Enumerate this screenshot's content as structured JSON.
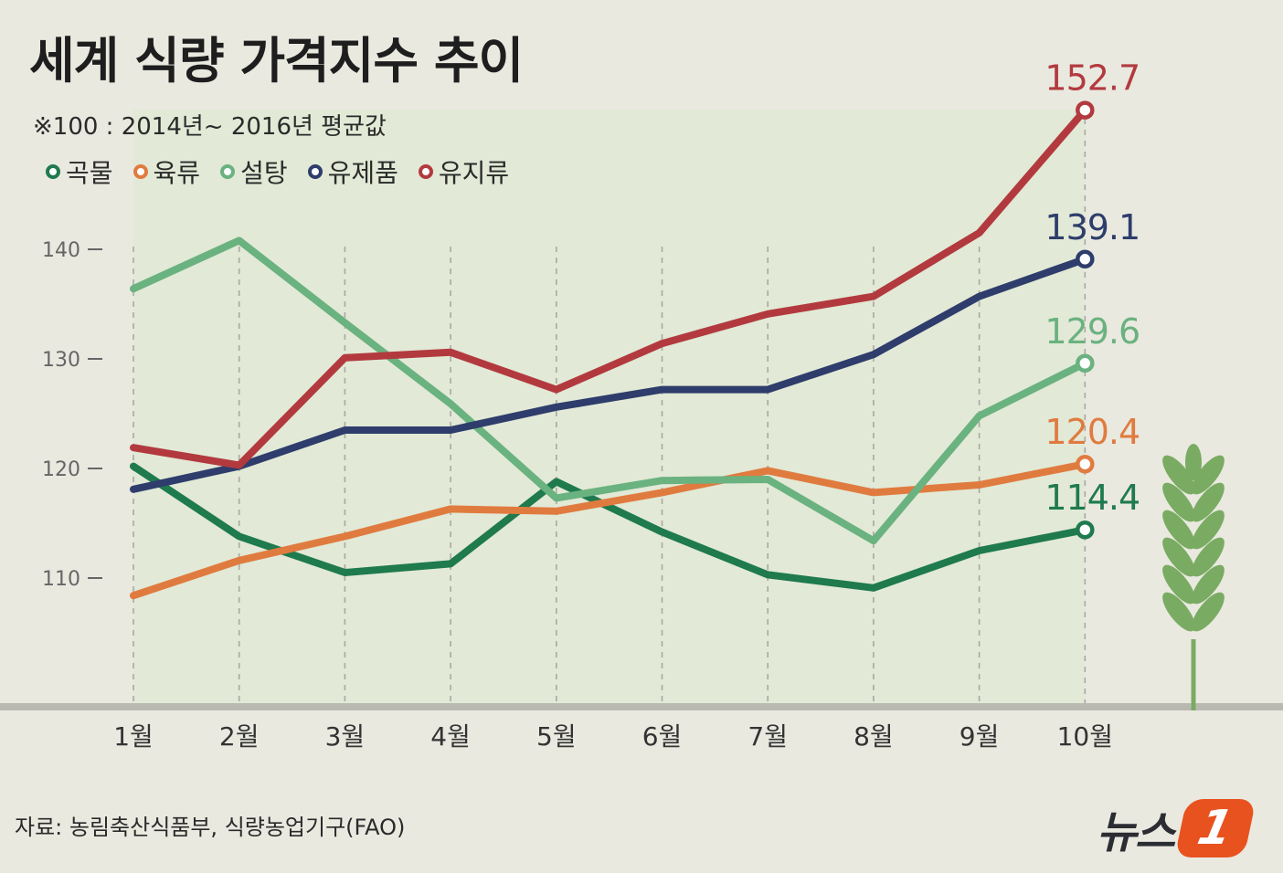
{
  "title": "세계 식량 가격지수 추이",
  "subtitle": "※100 : 2014년~ 2016년 평균값",
  "source": "자료: 농림축산식품부, 식량농업기구(FAO)",
  "logo": {
    "text": "뉴스",
    "badge": "1"
  },
  "colors": {
    "background": "#e9e9e0",
    "plot_fill": "#e2e9d6",
    "baseline": "#b9b9b2",
    "wheat": "#7aab62"
  },
  "chart_data": {
    "type": "line",
    "title": "세계 식량 가격지수 추이",
    "xlabel": "",
    "ylabel": "",
    "ylim": [
      100,
      155
    ],
    "yticks": [
      110,
      120,
      130,
      140
    ],
    "categories": [
      "1월",
      "2월",
      "3월",
      "4월",
      "5월",
      "6월",
      "7월",
      "8월",
      "9월",
      "10월"
    ],
    "series": [
      {
        "name": "곡물",
        "color": "#1f7a4d",
        "values": [
          120.2,
          113.8,
          110.5,
          111.3,
          118.8,
          114.2,
          110.3,
          109.1,
          112.5,
          114.4
        ],
        "end_label": "114.4"
      },
      {
        "name": "육류",
        "color": "#e07b3f",
        "values": [
          108.4,
          111.6,
          113.8,
          116.3,
          116.1,
          117.8,
          119.8,
          117.8,
          118.5,
          120.4
        ],
        "end_label": "120.4"
      },
      {
        "name": "설탕",
        "color": "#6ab27f",
        "values": [
          136.4,
          140.8,
          133.3,
          125.9,
          117.3,
          118.9,
          119.0,
          113.4,
          124.8,
          129.6
        ],
        "end_label": "129.6"
      },
      {
        "name": "유제품",
        "color": "#2e3d6b",
        "values": [
          118.1,
          120.2,
          123.5,
          123.5,
          125.6,
          127.2,
          127.2,
          130.4,
          135.7,
          139.1
        ],
        "end_label": "139.1"
      },
      {
        "name": "유지류",
        "color": "#b23a3f",
        "values": [
          121.9,
          120.3,
          130.1,
          130.6,
          127.2,
          131.4,
          134.1,
          135.7,
          141.5,
          152.7
        ],
        "end_label": "152.7"
      }
    ]
  }
}
